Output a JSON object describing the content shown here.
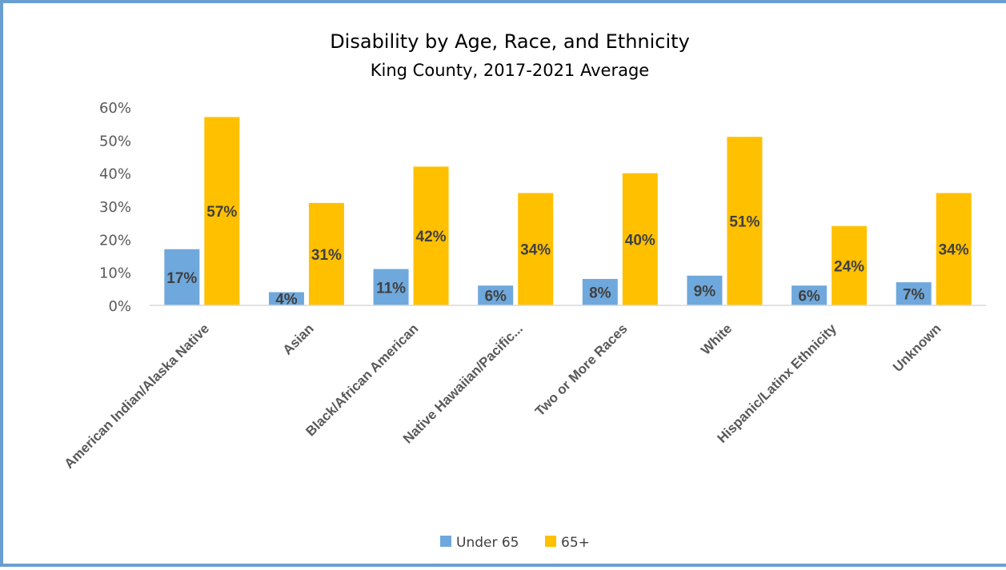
{
  "chart_data": {
    "type": "bar",
    "title": "Disability by Age, Race, and Ethnicity",
    "subtitle": "King County, 2017-2021 Average",
    "categories": [
      "American Indian/Alaska Native",
      "Asian",
      "Black/African American",
      "Native Hawaiian/Pacific...",
      "Two or More Races",
      "White",
      "Hispanic/Latinx Ethnicity",
      "Unknown"
    ],
    "series": [
      {
        "name": "Under 65",
        "color": "#6fa8dc",
        "values": [
          17,
          4,
          11,
          6,
          8,
          9,
          6,
          7
        ],
        "labels": [
          "17%",
          "4%",
          "11%",
          "6%",
          "8%",
          "9%",
          "6%",
          "7%"
        ]
      },
      {
        "name": "65+",
        "color": "#ffc000",
        "values": [
          57,
          31,
          42,
          34,
          40,
          51,
          24,
          34
        ],
        "labels": [
          "57%",
          "31%",
          "42%",
          "34%",
          "40%",
          "51%",
          "24%",
          "34%"
        ]
      }
    ],
    "yticks": [
      "0%",
      "10%",
      "20%",
      "30%",
      "40%",
      "50%",
      "60%"
    ],
    "ylim": [
      0,
      60
    ],
    "grid": false,
    "legend": "bottom"
  }
}
